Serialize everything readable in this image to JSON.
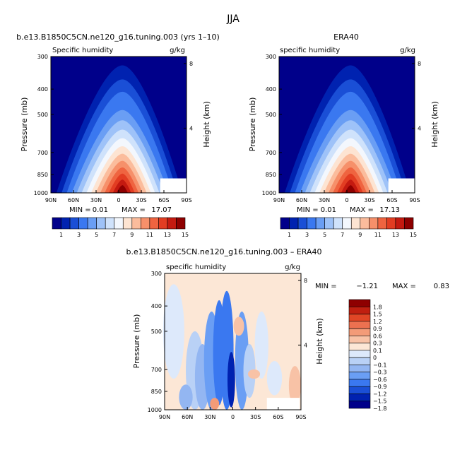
{
  "page_title": "JJA",
  "colors": {
    "fill_levels": [
      "#00008a",
      "#0022b0",
      "#1a4fd6",
      "#3a78f0",
      "#6a9ef4",
      "#9ec2f8",
      "#cfe2fb",
      "#f3f7fd",
      "#fde4d2",
      "#fbbc9c",
      "#f6906a",
      "#ef6440",
      "#e23d22",
      "#c41a10",
      "#8e0000"
    ],
    "diff_levels": [
      "#00008a",
      "#0022b0",
      "#1a4fd6",
      "#3a78f0",
      "#6a9ef4",
      "#93b6f2",
      "#b9d1f6",
      "#dde9fb",
      "#fce7d6",
      "#f8c2a6",
      "#f39b78",
      "#ec7150",
      "#e04626",
      "#c01f10",
      "#8e0000"
    ]
  },
  "chart_data": [
    {
      "type": "heatmap",
      "title": "b.e13.B1850C5CN.ne120_g16.tuning.003 (yrs 1–10)",
      "subtitle_left": "Specific humidity",
      "subtitle_right": "g/kg",
      "ylabel": "Pressure (mb)",
      "ylabel_right": "Height (km)",
      "x_ticks": [
        "90N",
        "60N",
        "30N",
        "0",
        "30S",
        "60S",
        "90S"
      ],
      "x_values": [
        90,
        60,
        30,
        0,
        -30,
        -60,
        -90
      ],
      "y_ticks": [
        300,
        400,
        500,
        700,
        850,
        1000
      ],
      "height_ticks": [
        8,
        4
      ],
      "min_label": "MIN =",
      "min": "0.01",
      "max_label": "MAX =",
      "max": "17.07",
      "peak_lat": -5,
      "field_max": 17.07
    },
    {
      "type": "heatmap",
      "title": "ERA40",
      "subtitle_left": "specific humidity",
      "subtitle_right": "g/kg",
      "ylabel": "Pressure (mb)",
      "ylabel_right": "Height (km)",
      "x_ticks": [
        "90N",
        "60N",
        "30N",
        "0",
        "30S",
        "60S",
        "90S"
      ],
      "x_values": [
        90,
        60,
        30,
        0,
        -30,
        -60,
        -90
      ],
      "y_ticks": [
        300,
        400,
        500,
        700,
        850,
        1000
      ],
      "height_ticks": [
        8,
        4
      ],
      "min_label": "MIN =",
      "min": "0.01",
      "max_label": "MAX =",
      "max": "17.13",
      "peak_lat": -5,
      "field_max": 17.13
    },
    {
      "type": "heatmap",
      "title": "b.e13.B1850C5CN.ne120_g16.tuning.003 – ERA40",
      "subtitle_left": "specific humidity",
      "subtitle_right": "g/kg",
      "ylabel": "Pressure (mb)",
      "ylabel_right": "Height (km)",
      "x_ticks": [
        "90N",
        "60N",
        "30N",
        "0",
        "30S",
        "60S",
        "90S"
      ],
      "x_values": [
        90,
        60,
        30,
        0,
        -30,
        -60,
        -90
      ],
      "y_ticks": [
        300,
        400,
        500,
        700,
        850,
        1000
      ],
      "height_ticks": [
        8,
        4
      ],
      "min_label": "MIN =",
      "min": "−1.21",
      "max_label": "MAX =",
      "max": "0.83"
    }
  ],
  "colorbar_main": {
    "labels": [
      "1",
      "3",
      "5",
      "7",
      "9",
      "11",
      "13",
      "15"
    ]
  },
  "colorbar_diff": {
    "labels": [
      "1.8",
      "1.5",
      "1.2",
      "0.9",
      "0.6",
      "0.3",
      "0.1",
      "0",
      "−0.1",
      "−0.3",
      "−0.6",
      "−0.9",
      "−1.2",
      "−1.5",
      "−1.8"
    ]
  }
}
